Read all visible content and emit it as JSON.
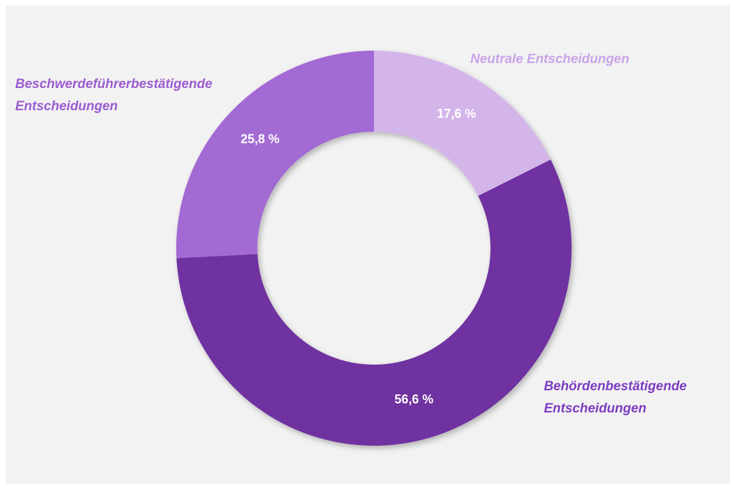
{
  "chart_data": {
    "type": "pie",
    "categories": [
      "Neutrale Entscheidungen",
      "Behördenbestätigende Entscheidungen",
      "Beschwerdeführerbestätigende Entscheidungen"
    ],
    "values": [
      17.6,
      56.6,
      25.8
    ],
    "value_labels": [
      "17,6 %",
      "56,6 %",
      "25,8 %"
    ],
    "colors": [
      "#d4b5ea",
      "#7030a0",
      "#a36ad4"
    ],
    "label_colors": [
      "#c9a3ea",
      "#7c3cc0",
      "#9a5bd0"
    ]
  }
}
